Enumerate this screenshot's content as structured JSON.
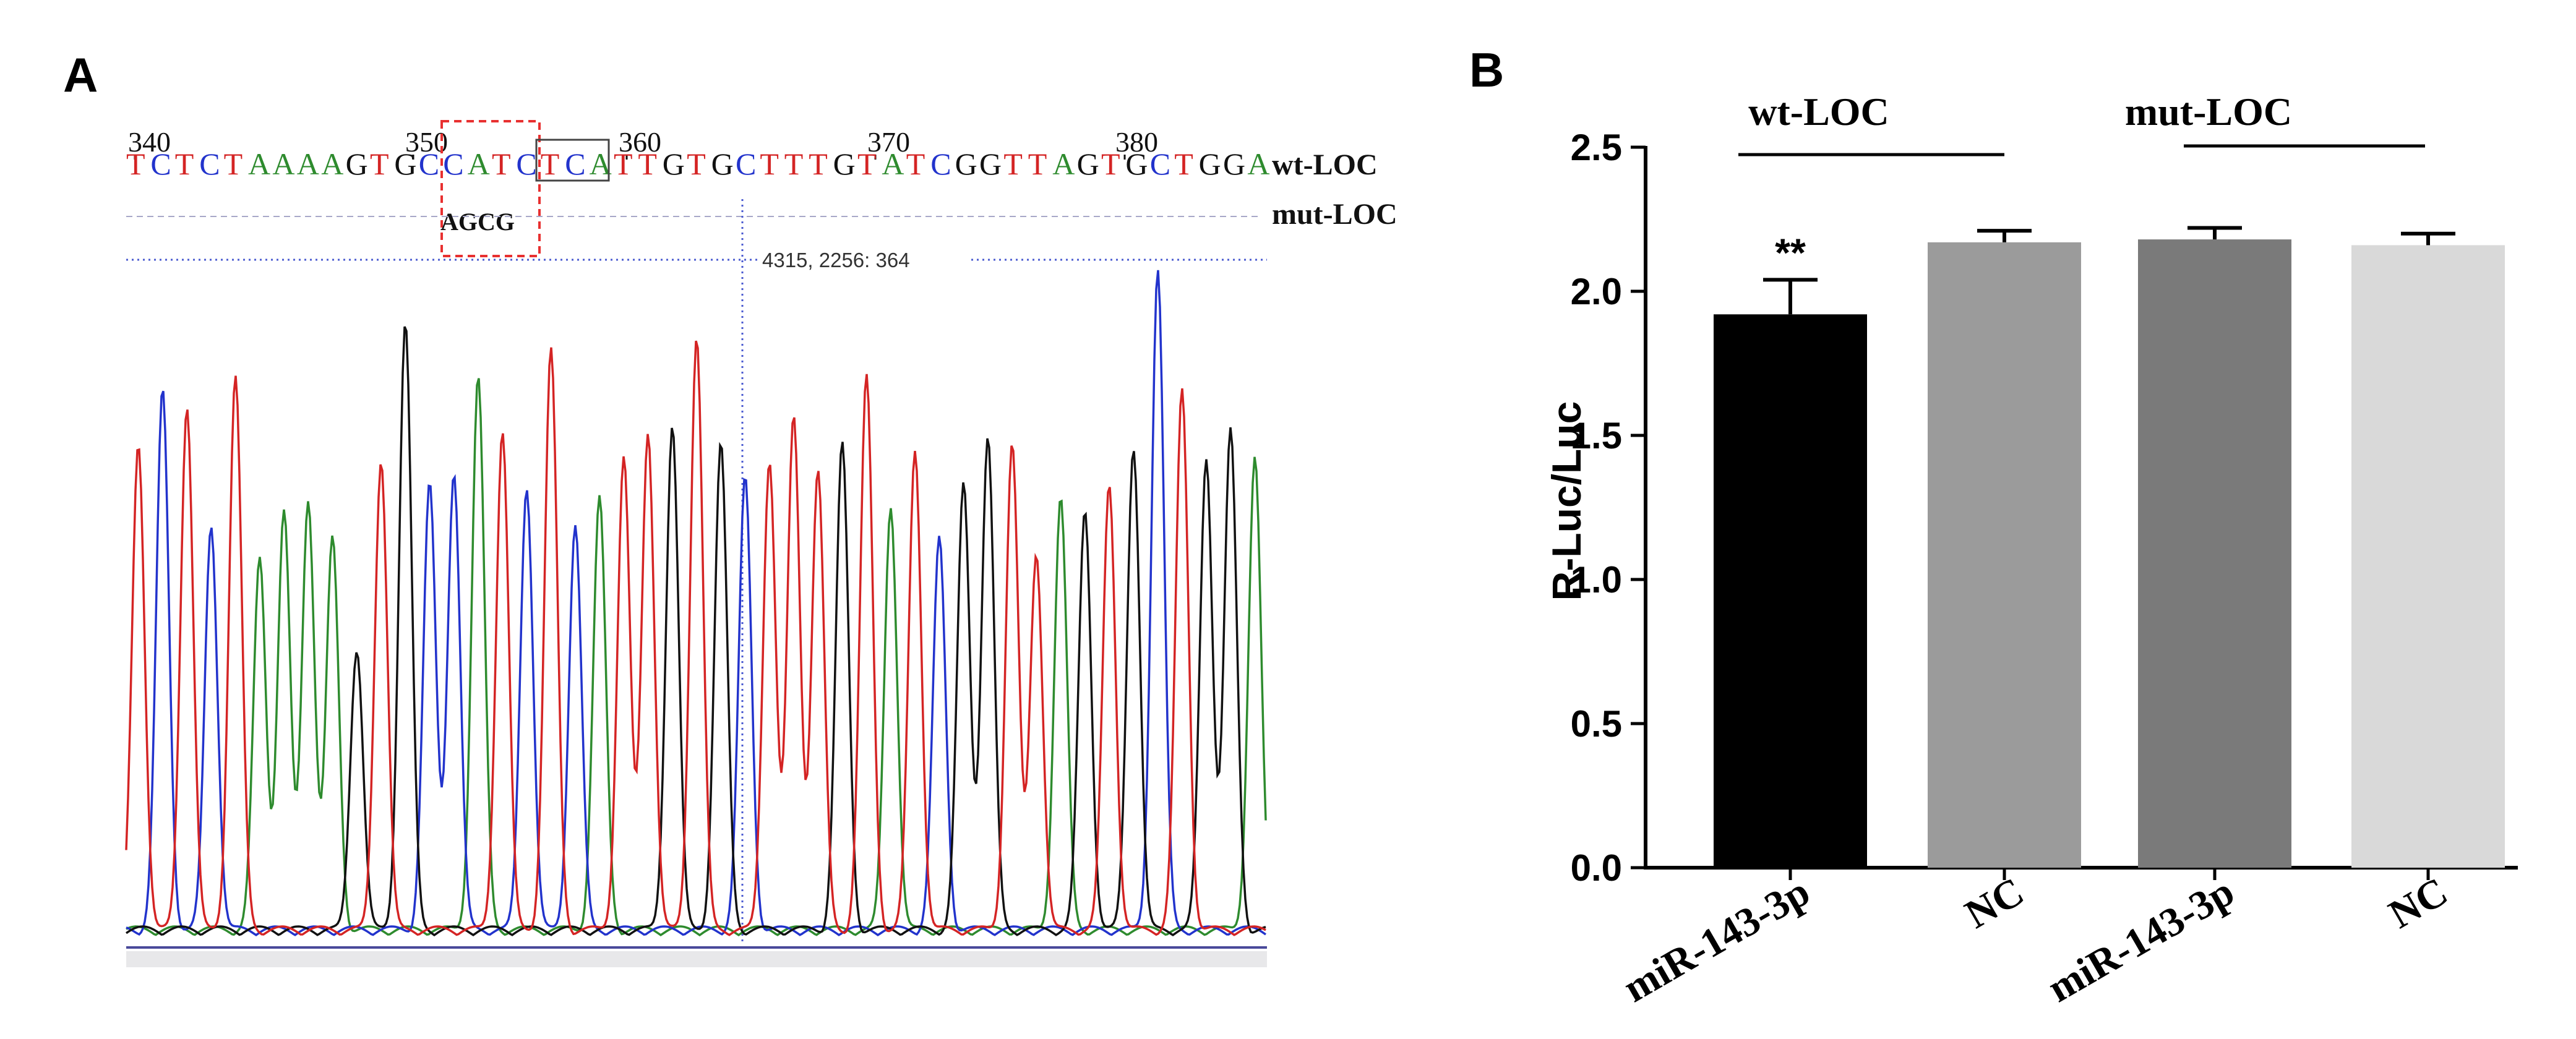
{
  "panel_a": {
    "label": "A",
    "sequence": "TCTCTAAAAGTGCCATCTCATTGTGCTTTGTATCGGTTAGTGCTGGA",
    "ruler": [
      "340",
      "350",
      "360",
      "370",
      "380"
    ],
    "wt_label": "wt-LOC",
    "mut_label": "mut-LOC",
    "mut_sequence": "AGCG",
    "cursor_readout": "4315, 2256: 364",
    "colors": {
      "A": "#2e8b2e",
      "C": "#2233cc",
      "G": "#111111",
      "T": "#d42424",
      "highlight": "#e83030"
    }
  },
  "panel_b": {
    "label": "B",
    "group_labels": [
      "wt-LOC",
      "mut-LOC"
    ],
    "significance": "**"
  },
  "chart_data": {
    "type": "bar",
    "title": "",
    "xlabel": "",
    "ylabel": "R-Luc/Luc",
    "categories": [
      "miR-143-3p",
      "NC",
      "miR-143-3p",
      "NC"
    ],
    "values": [
      1.92,
      2.17,
      2.18,
      2.16
    ],
    "errors": [
      0.12,
      0.04,
      0.04,
      0.04
    ],
    "colors": [
      "#000000",
      "#9b9b9b",
      "#7a7a7a",
      "#d9d9d9"
    ],
    "ylim": [
      0.0,
      2.5
    ],
    "yticks": [
      "0.0",
      "0.5",
      "1.0",
      "1.5",
      "2.0",
      "2.5"
    ],
    "grid": false,
    "legend": "none"
  }
}
